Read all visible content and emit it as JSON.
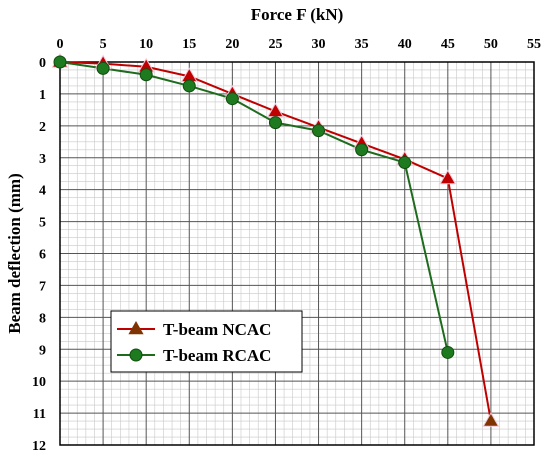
{
  "chart_data": {
    "type": "line",
    "xlabel": "Force F (kN)",
    "ylabel": "Beam deflection (mm)",
    "xlim": [
      0,
      55
    ],
    "ylim": [
      0,
      12
    ],
    "x_axis_position": "top",
    "y_axis_inverted": true,
    "x_ticks": [
      "0",
      "5",
      "10",
      "15",
      "20",
      "25",
      "30",
      "35",
      "40",
      "45",
      "50",
      "55"
    ],
    "y_ticks": [
      "0",
      "1",
      "2",
      "3",
      "4",
      "5",
      "6",
      "7",
      "8",
      "9",
      "10",
      "11",
      "12"
    ],
    "grid": "major and minor",
    "legend_position": "bottom-left",
    "series": [
      {
        "name": "T-beam NCAC",
        "marker": "triangle",
        "line_color": "#c00000",
        "marker_color": "#c00000",
        "last_marker_color": "#7f3300",
        "x": [
          0,
          5,
          10,
          15,
          20,
          25,
          30,
          35,
          40,
          45,
          50
        ],
        "y": [
          0,
          0.05,
          0.15,
          0.45,
          1.0,
          1.55,
          2.05,
          2.55,
          3.05,
          3.65,
          11.25
        ]
      },
      {
        "name": "T-beam RCAC",
        "marker": "circle",
        "line_color": "#1e6b1e",
        "marker_color": "#1e7a1e",
        "x": [
          0,
          5,
          10,
          15,
          20,
          25,
          30,
          35,
          40,
          45
        ],
        "y": [
          0,
          0.2,
          0.4,
          0.75,
          1.15,
          1.9,
          2.15,
          2.75,
          3.15,
          9.1
        ]
      }
    ]
  }
}
